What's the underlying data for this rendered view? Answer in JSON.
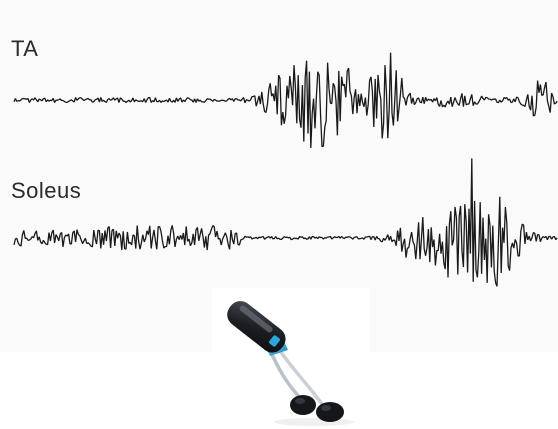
{
  "labels": {
    "ta": "TA",
    "soleus": "Soleus"
  },
  "colors": {
    "trace": "#1a1a1a",
    "panel_background": "#fafafa",
    "sensor_body": "#1c1f24",
    "sensor_accent": "#2aa7d6",
    "electrode": "#15171a",
    "cable": "#b9c2c8"
  },
  "device": {
    "icon": "emg-sensor-with-electrodes-icon"
  }
}
